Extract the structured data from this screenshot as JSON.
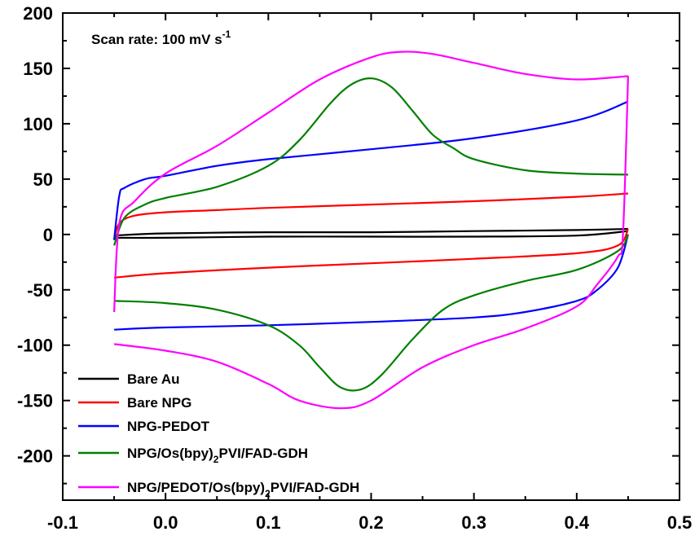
{
  "chart_data": {
    "type": "line",
    "title": "",
    "xlabel": "",
    "ylabel": "",
    "xlim": [
      -0.1,
      0.5
    ],
    "ylim": [
      -240,
      200
    ],
    "x_ticks": [
      -0.1,
      0.0,
      0.1,
      0.2,
      0.3,
      0.4,
      0.5
    ],
    "x_tick_labels": [
      "-0.1",
      "0.0",
      "0.1",
      "0.2",
      "0.3",
      "0.4",
      "0.5"
    ],
    "y_ticks": [
      200,
      150,
      100,
      50,
      0,
      -50,
      -100,
      -150,
      -200
    ],
    "y_tick_labels": [
      "200",
      "150",
      "100",
      "50",
      "0",
      "-50",
      "-100",
      "-150",
      "-200"
    ],
    "annotation": {
      "text": "Scan rate: 100 mV s",
      "superscript": "-1"
    },
    "legend_position": "bottom-left",
    "grid": false,
    "series": [
      {
        "name": "Bare Au",
        "color": "#000000",
        "forward": {
          "x": [
            -0.05,
            0.0,
            0.1,
            0.2,
            0.3,
            0.4,
            0.45
          ],
          "y": [
            -1,
            1,
            2,
            2,
            3,
            4,
            5
          ]
        },
        "reverse": {
          "x": [
            0.45,
            0.4,
            0.3,
            0.2,
            0.1,
            0.0,
            -0.05
          ],
          "y": [
            3,
            -1,
            -2,
            -2,
            -2,
            -3,
            -3
          ]
        }
      },
      {
        "name": "Bare NPG",
        "color": "#ff0000",
        "forward": {
          "x": [
            -0.05,
            -0.045,
            -0.03,
            0.0,
            0.05,
            0.1,
            0.2,
            0.3,
            0.4,
            0.45
          ],
          "y": [
            -5,
            10,
            17,
            20,
            22,
            24,
            27,
            30,
            34,
            37
          ]
        },
        "reverse": {
          "x": [
            0.45,
            0.44,
            0.4,
            0.3,
            0.2,
            0.1,
            0.0,
            -0.05
          ],
          "y": [
            5,
            -10,
            -17,
            -22,
            -26,
            -30,
            -35,
            -39
          ]
        }
      },
      {
        "name": "NPG-PEDOT",
        "color": "#0000ff",
        "forward": {
          "x": [
            -0.05,
            -0.045,
            -0.04,
            -0.02,
            0.0,
            0.05,
            0.1,
            0.2,
            0.3,
            0.4,
            0.45
          ],
          "y": [
            -5,
            35,
            42,
            50,
            53,
            62,
            68,
            77,
            87,
            103,
            120
          ]
        },
        "reverse": {
          "x": [
            0.45,
            0.44,
            0.42,
            0.4,
            0.35,
            0.3,
            0.2,
            0.1,
            0.0,
            -0.05
          ],
          "y": [
            0,
            -30,
            -50,
            -60,
            -70,
            -75,
            -79,
            -82,
            -84,
            -86
          ]
        }
      },
      {
        "name": "NPG/Os(bpy)2PVI/FAD-GDH",
        "color": "#008000",
        "forward": {
          "x": [
            -0.05,
            -0.04,
            -0.02,
            0.0,
            0.05,
            0.1,
            0.13,
            0.16,
            0.18,
            0.2,
            0.22,
            0.24,
            0.26,
            0.28,
            0.3,
            0.35,
            0.4,
            0.45
          ],
          "y": [
            -10,
            15,
            27,
            33,
            43,
            62,
            85,
            118,
            135,
            141,
            133,
            112,
            90,
            78,
            68,
            58,
            55,
            54
          ]
        },
        "reverse": {
          "x": [
            0.45,
            0.44,
            0.4,
            0.35,
            0.3,
            0.27,
            0.24,
            0.21,
            0.19,
            0.17,
            0.15,
            0.13,
            0.1,
            0.05,
            0.0,
            -0.05
          ],
          "y": [
            0,
            -15,
            -32,
            -42,
            -55,
            -68,
            -95,
            -127,
            -140,
            -138,
            -120,
            -100,
            -82,
            -68,
            -62,
            -60
          ]
        }
      },
      {
        "name": "NPG/PEDOT/Os(bpy)2PVI/FAD-GDH",
        "color": "#ff00ff",
        "forward": {
          "x": [
            -0.05,
            -0.045,
            -0.03,
            0.0,
            0.05,
            0.1,
            0.15,
            0.2,
            0.23,
            0.26,
            0.3,
            0.35,
            0.4,
            0.45
          ],
          "y": [
            -70,
            10,
            30,
            55,
            80,
            110,
            140,
            160,
            165,
            163,
            155,
            145,
            140,
            143
          ]
        },
        "reverse": {
          "x": [
            0.45,
            0.445,
            0.44,
            0.42,
            0.4,
            0.35,
            0.3,
            0.25,
            0.2,
            0.17,
            0.13,
            0.1,
            0.05,
            0.0,
            -0.05
          ],
          "y": [
            143,
            0,
            -20,
            -45,
            -65,
            -85,
            -100,
            -120,
            -150,
            -157,
            -150,
            -135,
            -115,
            -105,
            -99
          ]
        }
      }
    ]
  }
}
